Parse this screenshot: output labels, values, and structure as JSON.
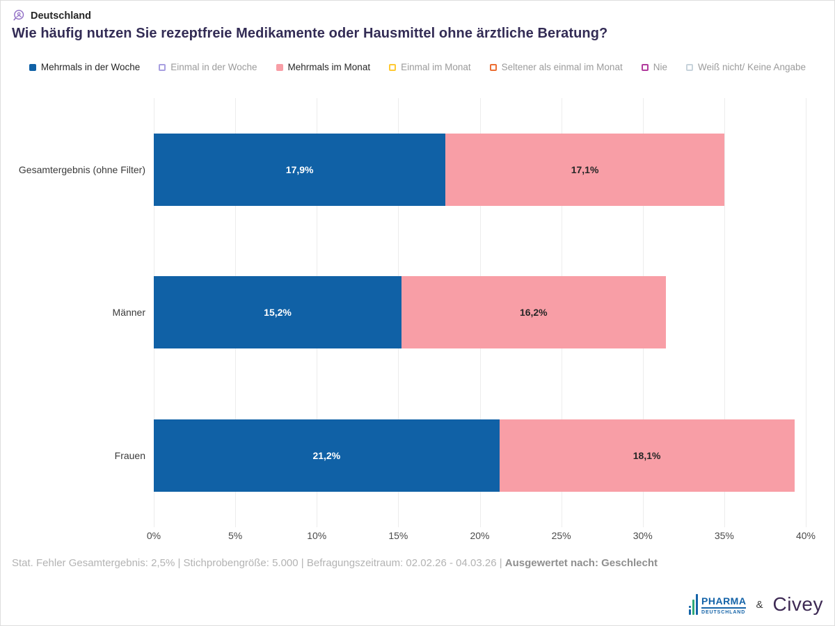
{
  "header": {
    "region_label": "Deutschland"
  },
  "title": "Wie häufig nutzen Sie rezeptfreie Medikamente oder Hausmittel ohne ärztliche Beratung?",
  "legend": {
    "items": [
      {
        "label": "Mehrmals in der Woche",
        "color": "#1061A6",
        "active": true
      },
      {
        "label": "Einmal in der Woche",
        "color": "#A89FE0",
        "active": false
      },
      {
        "label": "Mehrmals im Monat",
        "color": "#F89EA6",
        "active": true
      },
      {
        "label": "Einmal im Monat",
        "color": "#FFC933",
        "active": false
      },
      {
        "label": "Seltener als einmal im Monat",
        "color": "#EC6E33",
        "active": false
      },
      {
        "label": "Nie",
        "color": "#B13A9C",
        "active": false
      },
      {
        "label": "Weiß nicht/ Keine Angabe",
        "color": "#C7D3DB",
        "active": false
      }
    ]
  },
  "chart_data": {
    "type": "bar",
    "orientation": "horizontal",
    "stacked": true,
    "title": "Wie häufig nutzen Sie rezeptfreie Medikamente oder Hausmittel ohne ärztliche Beratung?",
    "categories": [
      "Gesamtergebnis (ohne Filter)",
      "Männer",
      "Frauen"
    ],
    "series": [
      {
        "name": "Mehrmals in der Woche",
        "color": "#1061A6",
        "label_color": "#FFFFFF",
        "values": [
          17.9,
          15.2,
          21.2
        ],
        "display_values": [
          "17,9%",
          "15,2%",
          "21,2%"
        ]
      },
      {
        "name": "Mehrmals im Monat",
        "color": "#F89EA6",
        "label_color": "#262626",
        "values": [
          17.1,
          16.2,
          18.1
        ],
        "display_values": [
          "17,1%",
          "16,2%",
          "18,1%"
        ]
      }
    ],
    "xlim": [
      0,
      40
    ],
    "x_ticks": [
      "0%",
      "5%",
      "10%",
      "15%",
      "20%",
      "25%",
      "30%",
      "35%",
      "40%"
    ],
    "grid": true,
    "legend_position": "top"
  },
  "footer": {
    "stats_text": "Stat. Fehler Gesamtergebnis: 2,5% | Stichprobengröße: 5.000 | Befragungszeitraum: 02.02.26 - 04.03.26 | ",
    "evaluated_by": "Ausgewertet nach: Geschlecht"
  },
  "branding": {
    "pharma_line1": "PHARMA",
    "pharma_line2": "DEUTSCHLAND",
    "ampersand": "&",
    "civey": "Civey",
    "pharma_blue": "#1463A8",
    "pharma_green": "#2FA977",
    "civey_purple": "#3E2A54"
  }
}
